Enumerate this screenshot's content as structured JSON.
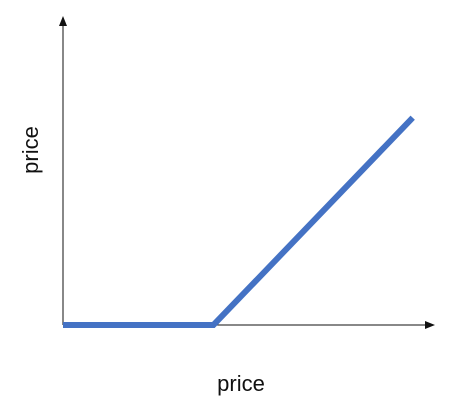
{
  "chart_data": {
    "type": "line",
    "title": "",
    "xlabel": "price",
    "ylabel": "price",
    "grid": false,
    "legend": "none",
    "xlim": [
      0,
      10
    ],
    "ylim": [
      0,
      10
    ],
    "axis_color": "#111111",
    "series": [
      {
        "color": "#4472C4",
        "x": [
          0,
          4,
          9.3
        ],
        "y": [
          0,
          0,
          7.1
        ]
      }
    ]
  }
}
